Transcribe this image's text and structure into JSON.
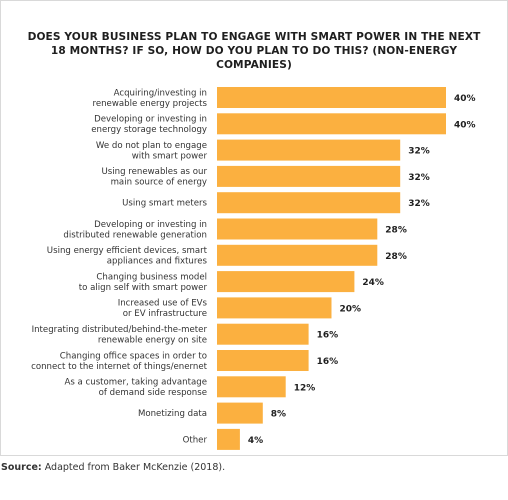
{
  "chart_data": {
    "type": "bar",
    "orientation": "horizontal",
    "title_lines": [
      "DOES YOUR BUSINESS PLAN TO ENGAGE WITH SMART POWER IN THE NEXT",
      "18 MONTHS? IF SO, HOW DO YOU PLAN TO DO THIS? (NON-ENERGY COMPANIES)"
    ],
    "categories": [
      [
        "Acquiring/investing in",
        "renewable energy projects"
      ],
      [
        "Developing or investing in",
        "energy storage technology"
      ],
      [
        "We do not plan to engage",
        "with smart power"
      ],
      [
        "Using renewables as our",
        "main source of energy"
      ],
      [
        "Using smart meters"
      ],
      [
        "Developing or investing in",
        "distributed renewable generation"
      ],
      [
        "Using energy efficient devices, smart",
        "appliances and fixtures"
      ],
      [
        "Changing business model",
        "to align self with smart power"
      ],
      [
        "Increased use of EVs",
        "or EV infrastructure"
      ],
      [
        "Integrating distributed/behind-the-meter",
        "renewable energy on site"
      ],
      [
        "Changing office spaces in order to",
        "connect to the internet of things/enernet"
      ],
      [
        "As a customer, taking advantage",
        "of demand side response"
      ],
      [
        "Monetizing data"
      ],
      [
        "Other"
      ]
    ],
    "values": [
      40,
      40,
      32,
      32,
      32,
      28,
      28,
      24,
      20,
      16,
      16,
      12,
      8,
      4
    ],
    "value_suffix": "%",
    "xlim": [
      0,
      40
    ],
    "bar_color": "#fbb040",
    "label_color": "#333333",
    "grid": false,
    "legend": false
  },
  "source": {
    "label": "Source:",
    "text": " Adapted from Baker McKenzie (2018)."
  }
}
